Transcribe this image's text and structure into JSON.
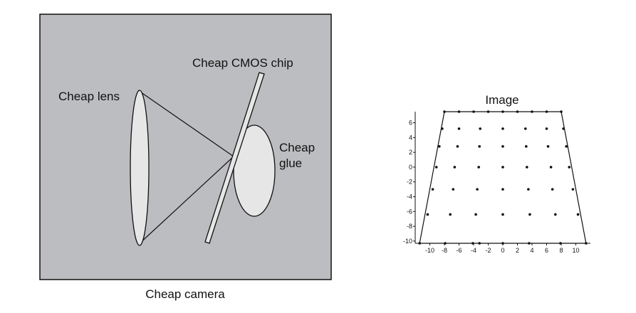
{
  "camera_diagram": {
    "caption": "Cheap camera",
    "labels": {
      "lens": "Cheap lens",
      "chip": "Cheap CMOS chip",
      "glue_line1": "Cheap",
      "glue_line2": "glue"
    },
    "colors": {
      "background": "#bcbdc0",
      "lens_fill": "#e6e6e6",
      "glue_fill": "#e6e6e6",
      "stroke": "#111111"
    }
  },
  "image_plot": {
    "title": "Image",
    "x_ticks": [
      -10,
      -8,
      -6,
      -4,
      -2,
      0,
      2,
      4,
      6,
      8,
      10
    ],
    "y_ticks": [
      6,
      4,
      2,
      0,
      -2,
      -4,
      -6,
      -8,
      -10
    ],
    "xlim": [
      -12,
      12
    ],
    "ylim": [
      -10.3,
      7.5
    ],
    "shape": "trapezoid",
    "outline": {
      "top": {
        "y": 7.5,
        "x": [
          -8,
          8
        ]
      },
      "bottom": {
        "y": -10.3,
        "x": [
          -11.4,
          11.4
        ]
      }
    },
    "rows": [
      {
        "y": 7.5,
        "x": [
          -8,
          -6,
          -4,
          -2,
          0,
          2,
          4,
          6,
          8
        ]
      },
      {
        "y": 5.2,
        "x": [
          -8.3,
          -6,
          -3.1,
          0,
          3.1,
          6,
          8.3
        ]
      },
      {
        "y": 2.8,
        "x": [
          -8.7,
          -6.2,
          -3.2,
          0,
          3.2,
          6.2,
          8.7
        ]
      },
      {
        "y": 0,
        "x": [
          -9.1,
          -6.6,
          -3.3,
          0,
          3.3,
          6.6,
          9.1
        ]
      },
      {
        "y": -3.0,
        "x": [
          -9.6,
          -6.8,
          -3.5,
          0,
          3.5,
          6.8,
          9.6
        ]
      },
      {
        "y": -6.4,
        "x": [
          -10.3,
          -7.2,
          -3.7,
          0,
          3.7,
          7.2,
          10.3
        ]
      },
      {
        "y": -10.3,
        "x": [
          -11.4,
          -7.9,
          -4.1,
          -3.2,
          0,
          3.6,
          7.9,
          11.4
        ]
      }
    ]
  }
}
